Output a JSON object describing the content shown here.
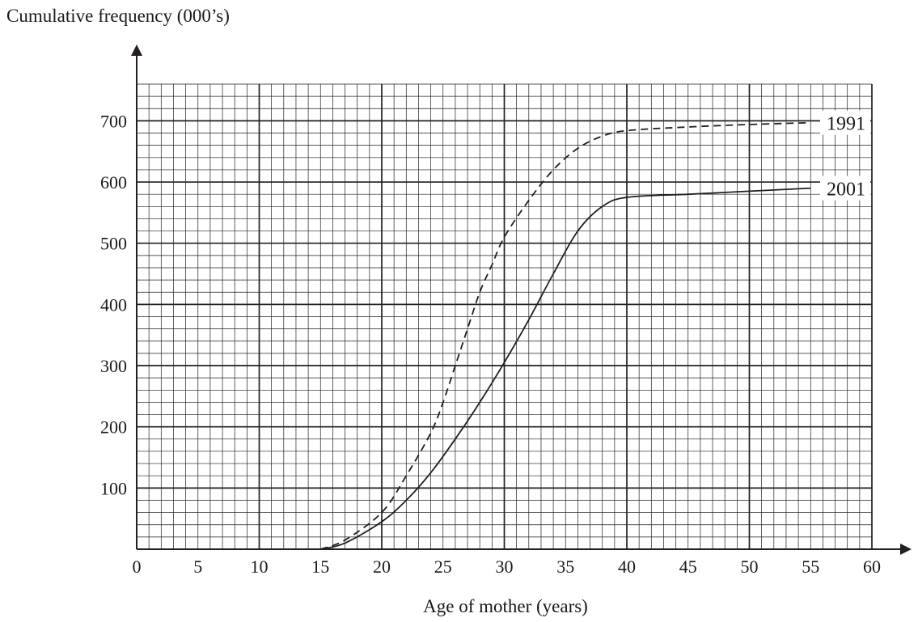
{
  "chart_data": {
    "type": "line",
    "title": "",
    "ylabel": "Cumulative frequency (000’s)",
    "xlabel": "Age of mother (years)",
    "xlim": [
      0,
      60
    ],
    "ylim": [
      0,
      760
    ],
    "x_ticks": [
      "0",
      "5",
      "10",
      "15",
      "20",
      "25",
      "30",
      "35",
      "40",
      "45",
      "50",
      "55",
      "60"
    ],
    "y_ticks": [
      "100",
      "200",
      "300",
      "400",
      "500",
      "600",
      "700"
    ],
    "grid": true,
    "series": [
      {
        "name": "1991",
        "line_style": "dashed",
        "points": [
          [
            15,
            0
          ],
          [
            17,
            15
          ],
          [
            20,
            60
          ],
          [
            22,
            120
          ],
          [
            24,
            190
          ],
          [
            25,
            240
          ],
          [
            26,
            300
          ],
          [
            27,
            360
          ],
          [
            28,
            420
          ],
          [
            29,
            465
          ],
          [
            30,
            510
          ],
          [
            32,
            570
          ],
          [
            34,
            620
          ],
          [
            36,
            655
          ],
          [
            38,
            675
          ],
          [
            40,
            684
          ],
          [
            45,
            690
          ],
          [
            50,
            694
          ],
          [
            55,
            697
          ]
        ]
      },
      {
        "name": "2001",
        "line_style": "solid",
        "points": [
          [
            15,
            0
          ],
          [
            17,
            10
          ],
          [
            20,
            45
          ],
          [
            22,
            80
          ],
          [
            24,
            125
          ],
          [
            26,
            180
          ],
          [
            28,
            240
          ],
          [
            30,
            305
          ],
          [
            32,
            375
          ],
          [
            34,
            450
          ],
          [
            36,
            520
          ],
          [
            38,
            560
          ],
          [
            40,
            575
          ],
          [
            45,
            580
          ],
          [
            50,
            585
          ],
          [
            55,
            590
          ]
        ]
      }
    ]
  }
}
